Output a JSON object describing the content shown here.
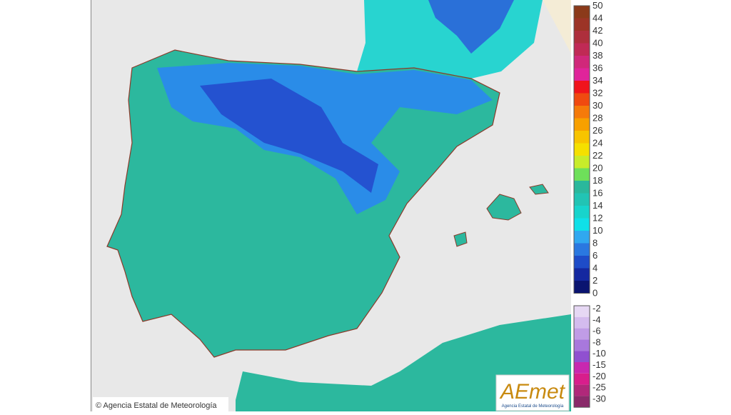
{
  "scale": {
    "labels": [
      "50",
      "44",
      "42",
      "40",
      "38",
      "36",
      "34",
      "32",
      "30",
      "28",
      "26",
      "24",
      "22",
      "20",
      "18",
      "16",
      "14",
      "12",
      "10",
      "8",
      "6",
      "4",
      "2",
      "0"
    ],
    "colors": [
      "#8b3a1a",
      "#9c3426",
      "#ae2f3c",
      "#c02a55",
      "#d0287a",
      "#e0249a",
      "#f0141c",
      "#f04a10",
      "#f57a0a",
      "#f8a000",
      "#f8c400",
      "#f5e000",
      "#c8ec2a",
      "#6ee05a",
      "#2ab89c",
      "#22c4b4",
      "#18d4cc",
      "#10e0e8",
      "#30a8f0",
      "#2a78e0",
      "#1e4cc8",
      "#1428a0",
      "#0a1470"
    ]
  },
  "negative_scale": {
    "labels": [
      "-2",
      "-4",
      "-6",
      "-8",
      "-10",
      "-15",
      "-20",
      "-25",
      "-30"
    ],
    "colors": [
      "#e6d8f4",
      "#d4bcee",
      "#c09ce6",
      "#a878dc",
      "#9050d0",
      "#c828b0",
      "#d81e8c",
      "#b0287a",
      "#8a2a6a"
    ]
  },
  "credit": "© Agencia Estatal de Meteorología",
  "logo": {
    "name": "AEmet",
    "subtitle": "Agencia Estatal de Meteorología"
  }
}
